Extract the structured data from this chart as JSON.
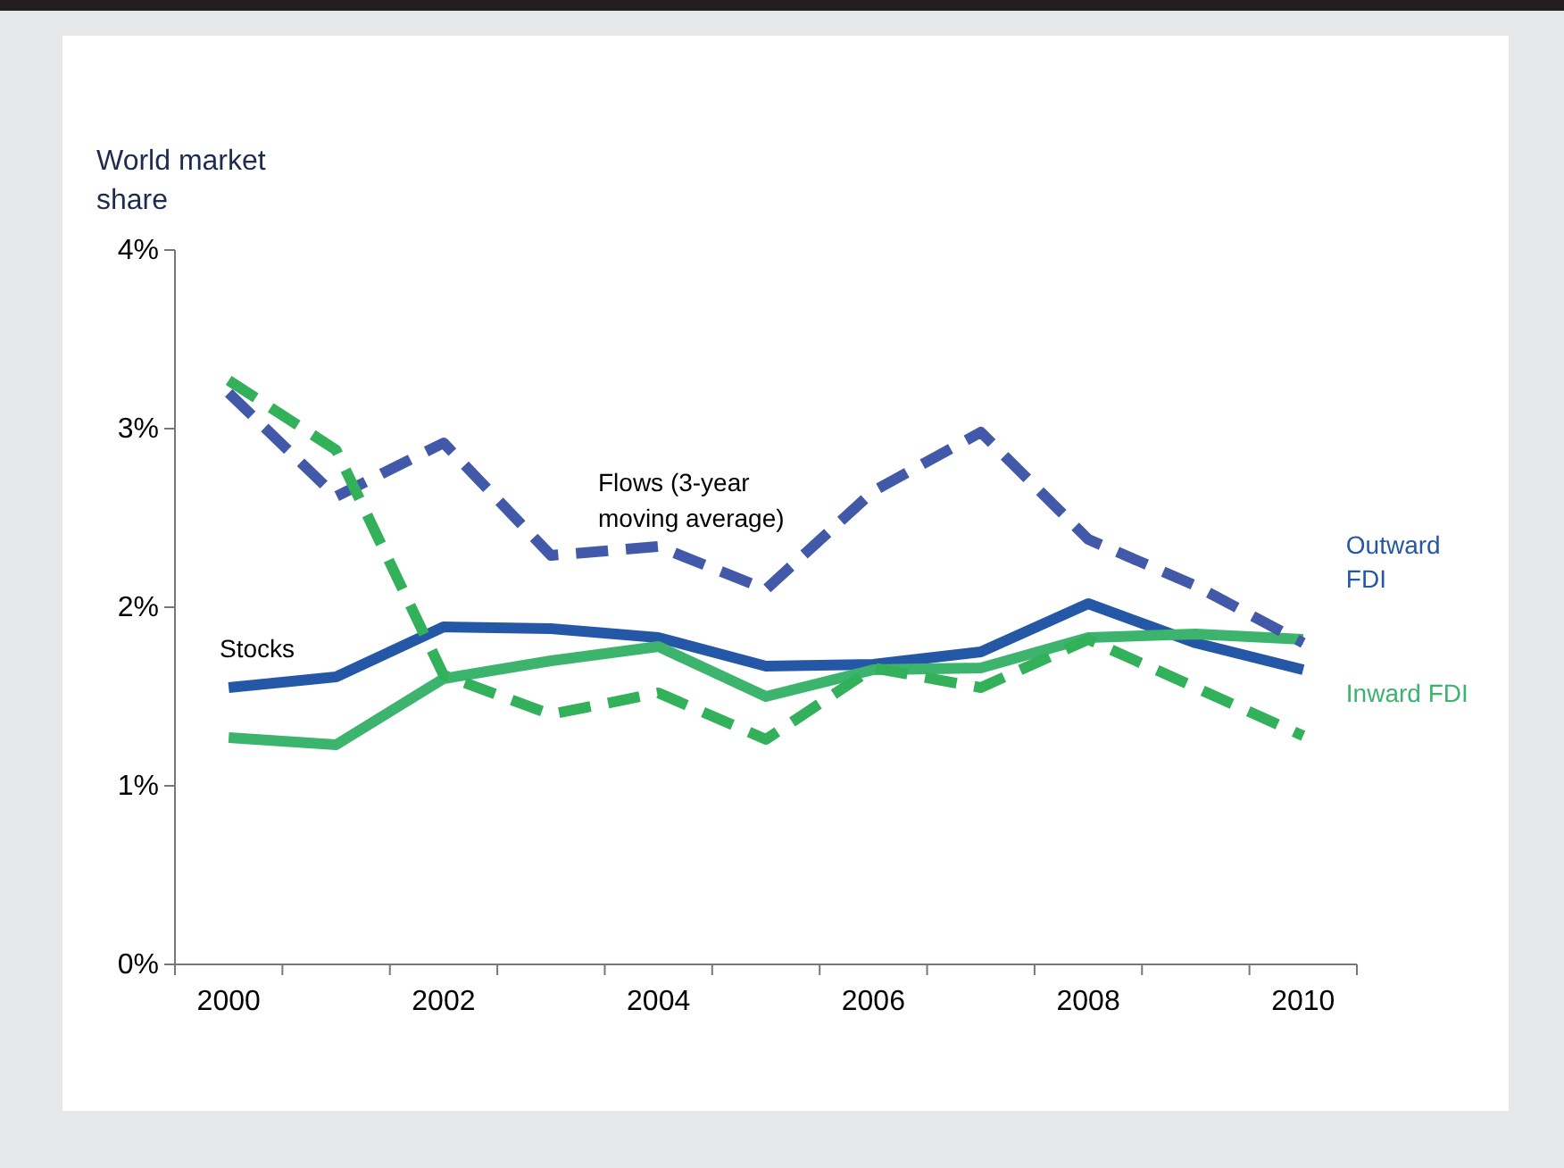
{
  "chart_data": {
    "type": "line",
    "ylabel": "World market share",
    "categories": [
      "2000",
      null,
      "2002",
      null,
      "2004",
      null,
      "2006",
      null,
      "2008",
      null,
      "2010"
    ],
    "ylim": [
      0,
      4
    ],
    "yticks": [
      {
        "value": 0,
        "label": "0%"
      },
      {
        "value": 1,
        "label": "1%"
      },
      {
        "value": 2,
        "label": "2%"
      },
      {
        "value": 3,
        "label": "3%"
      },
      {
        "value": 4,
        "label": "4%"
      }
    ],
    "grid": false,
    "series": [
      {
        "name": "Outward FDI",
        "color": "#2457a6",
        "line_style": "solid",
        "values": [
          1.55,
          1.61,
          1.89,
          1.88,
          1.83,
          1.67,
          1.68,
          1.75,
          2.02,
          1.8,
          1.65
        ]
      },
      {
        "name": "Inward FDI",
        "color": "#3cb46e",
        "line_style": "solid",
        "values": [
          1.27,
          1.23,
          1.6,
          1.7,
          1.78,
          1.5,
          1.65,
          1.66,
          1.83,
          1.85,
          1.82
        ]
      },
      {
        "color": "#4159a8",
        "line_style": "dashed",
        "values": [
          3.2,
          2.62,
          2.92,
          2.29,
          2.34,
          2.1,
          2.65,
          2.98,
          2.38,
          2.12,
          1.8
        ]
      },
      {
        "color": "#33b05a",
        "line_style": "dashed",
        "values": [
          3.27,
          2.88,
          1.62,
          1.4,
          1.52,
          1.26,
          1.66,
          1.55,
          1.82,
          1.55,
          1.28
        ]
      }
    ],
    "annotations": [
      "Stocks",
      "Flows (3-year moving average)"
    ]
  }
}
